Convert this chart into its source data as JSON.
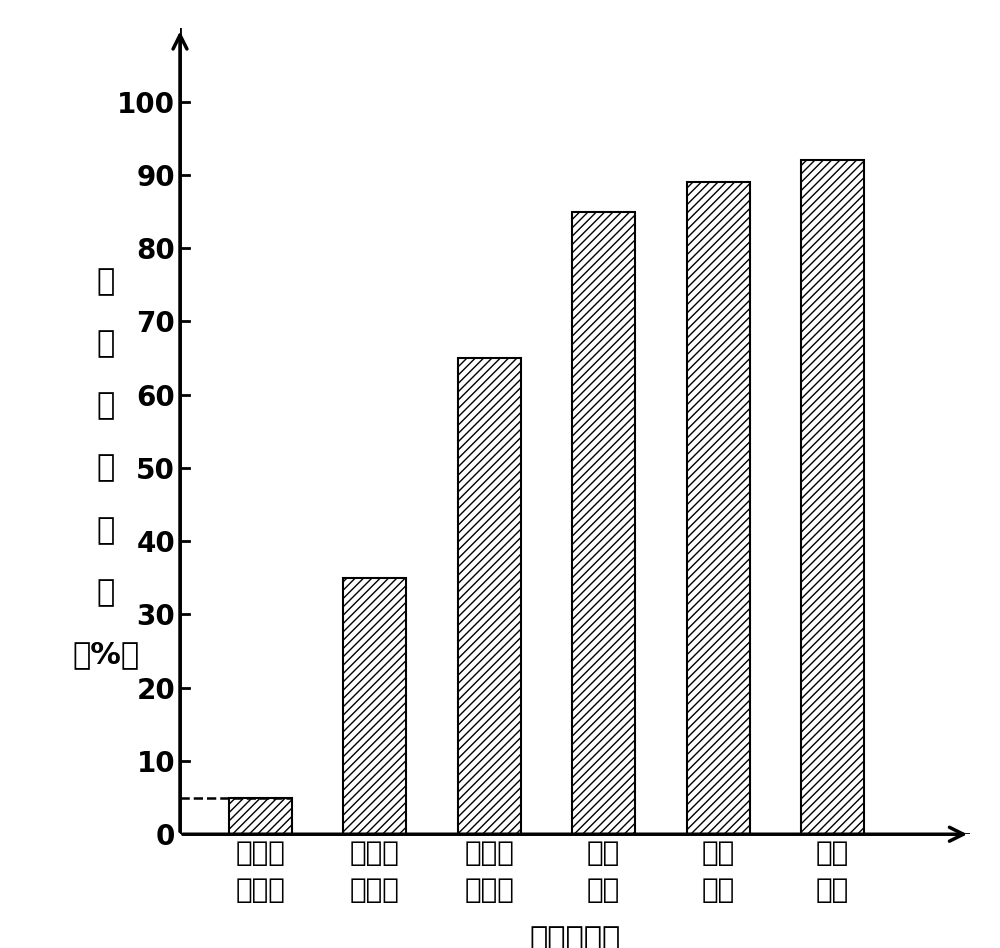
{
  "categories": [
    "对比实\n施例一",
    "对比实\n施例二",
    "对比实\n施例三",
    "实施\n例一",
    "实施\n例二",
    "实施\n例三"
  ],
  "values": [
    5,
    35,
    65,
    85,
    89,
    92
  ],
  "bar_color": "#ffffff",
  "bar_edgecolor": "#000000",
  "hatch": "////",
  "ylim": [
    0,
    110
  ],
  "yticks": [
    0,
    10,
    20,
    30,
    40,
    50,
    60,
    70,
    80,
    90,
    100
  ],
  "ylabel_lines": [
    "单",
    "质",
    "汞",
    "脱",
    "除",
    "率",
    "（%）"
  ],
  "xlabel": "嵔化剂类型",
  "dashed_line_y": 5,
  "background_color": "#ffffff",
  "label_fontsize": 22,
  "tick_fontsize": 20,
  "bar_width": 0.55
}
